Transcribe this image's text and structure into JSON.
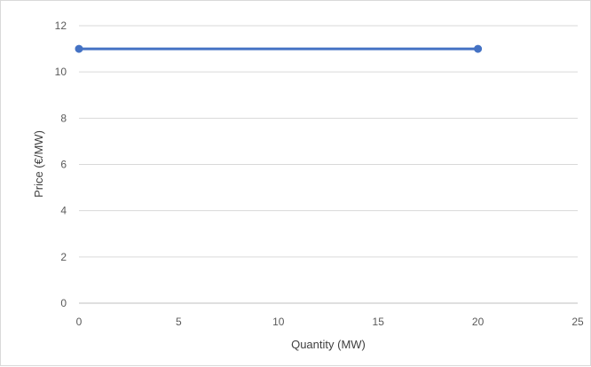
{
  "chart_data": {
    "type": "line",
    "title": "",
    "xlabel": "Quantity (MW)",
    "ylabel": "Price (€/MW)",
    "xlim": [
      0,
      25
    ],
    "ylim": [
      0,
      12
    ],
    "x_ticks": [
      0,
      5,
      10,
      15,
      20,
      25
    ],
    "y_ticks": [
      0,
      2,
      4,
      6,
      8,
      10,
      12
    ],
    "grid": "horizontal",
    "legend": "none",
    "series": [
      {
        "color": "#4472c4",
        "points": [
          {
            "x": 0,
            "y": 11
          },
          {
            "x": 20,
            "y": 11
          }
        ]
      }
    ]
  }
}
